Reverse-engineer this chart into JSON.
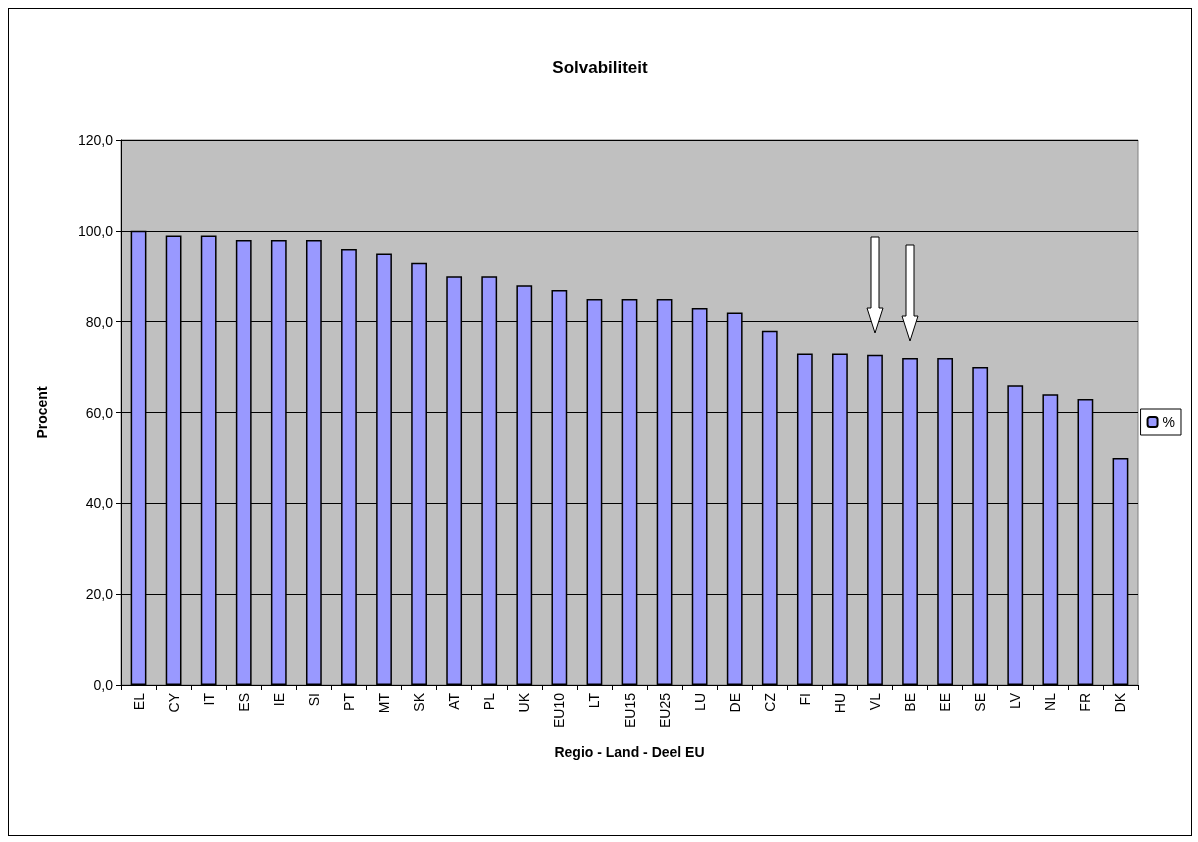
{
  "chart_data": {
    "type": "bar",
    "title": "Solvabiliteit",
    "xlabel": "Regio - Land - Deel EU",
    "ylabel": "Procent",
    "categories": [
      "EL",
      "CY",
      "IT",
      "ES",
      "IE",
      "SI",
      "PT",
      "MT",
      "SK",
      "AT",
      "PL",
      "UK",
      "EU10",
      "LT",
      "EU15",
      "EU25",
      "LU",
      "DE",
      "CZ",
      "FI",
      "HU",
      "VL",
      "BE",
      "EE",
      "SE",
      "LV",
      "NL",
      "FR",
      "DK"
    ],
    "series": [
      {
        "name": "%",
        "color": "#9999ff",
        "values": [
          100,
          99,
          99,
          98,
          98,
          98,
          96,
          95,
          93,
          90,
          90,
          88,
          87,
          85,
          85,
          85,
          83,
          82,
          78,
          73,
          73,
          72.7,
          72,
          72,
          70,
          66,
          64,
          63,
          50
        ]
      }
    ],
    "ylim": [
      0,
      120
    ],
    "yticks": [
      {
        "value": 0,
        "label": "0,0"
      },
      {
        "value": 20,
        "label": "20,0"
      },
      {
        "value": 40,
        "label": "40,0"
      },
      {
        "value": 60,
        "label": "60,0"
      },
      {
        "value": 80,
        "label": "80,0"
      },
      {
        "value": 100,
        "label": "100,0"
      },
      {
        "value": 120,
        "label": "120,0"
      }
    ],
    "grid": "y",
    "legend": "right"
  }
}
